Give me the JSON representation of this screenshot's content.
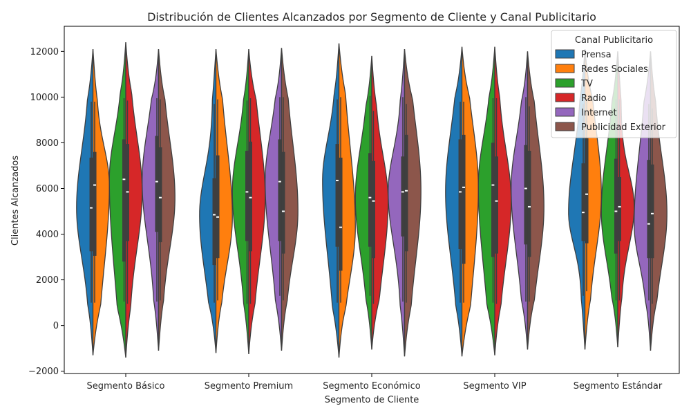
{
  "chart_data": {
    "type": "violin",
    "title": "Distribución de Clientes Alcanzados por Segmento de Cliente y Canal Publicitario",
    "xlabel": "Segmento de Cliente",
    "ylabel": "Clientes Alcanzados",
    "ylim": [
      -2100,
      13100
    ],
    "yticks": [
      -2000,
      0,
      2000,
      4000,
      6000,
      8000,
      10000,
      12000
    ],
    "ytick_labels": [
      "−2000",
      "0",
      "2000",
      "4000",
      "6000",
      "8000",
      "10000",
      "12000"
    ],
    "grid": false,
    "categories": [
      "Segmento Básico",
      "Segmento Premium",
      "Segmento Económico",
      "Segmento VIP",
      "Segmento Estándar"
    ],
    "legend": {
      "title": "Canal Publicitario",
      "position": "top-right"
    },
    "series": [
      {
        "name": "Prensa",
        "color": "#1f77b4",
        "stats": [
          {
            "min": 1000,
            "q1": 3250,
            "median": 5150,
            "q3": 7350,
            "max": 9800,
            "low": -1300,
            "high": 12100
          },
          {
            "min": 1000,
            "q1": 2650,
            "median": 4850,
            "q3": 6450,
            "max": 9700,
            "low": -1200,
            "high": 12100
          },
          {
            "min": 1000,
            "q1": 3450,
            "median": 6350,
            "q3": 7950,
            "max": 9900,
            "low": -1400,
            "high": 12350
          },
          {
            "min": 1000,
            "q1": 3350,
            "median": 5850,
            "q3": 8150,
            "max": 9800,
            "low": -1350,
            "high": 12200
          },
          {
            "min": 1300,
            "q1": 3700,
            "median": 4950,
            "q3": 7100,
            "max": 9700,
            "low": -1050,
            "high": 12100
          }
        ]
      },
      {
        "name": "Redes Sociales",
        "color": "#ff7f0e",
        "stats": [
          {
            "min": 1000,
            "q1": 3050,
            "median": 6150,
            "q3": 7600,
            "max": 9800,
            "low": -1300,
            "high": 12100
          },
          {
            "min": 1100,
            "q1": 2950,
            "median": 4750,
            "q3": 7450,
            "max": 9900,
            "low": -1200,
            "high": 12100
          },
          {
            "min": 1000,
            "q1": 2400,
            "median": 4300,
            "q3": 7350,
            "max": 10000,
            "low": -1400,
            "high": 12350
          },
          {
            "min": 1000,
            "q1": 2700,
            "median": 6050,
            "q3": 8350,
            "max": 9800,
            "low": -1350,
            "high": 12200
          },
          {
            "min": 1500,
            "q1": 3600,
            "median": 5750,
            "q3": 8200,
            "max": 9900,
            "low": -1050,
            "high": 12100
          }
        ]
      },
      {
        "name": "TV",
        "color": "#2ca02c",
        "stats": [
          {
            "min": 1050,
            "q1": 2800,
            "median": 6400,
            "q3": 8150,
            "max": 9950,
            "low": -1400,
            "high": 12400
          },
          {
            "min": 950,
            "q1": 3700,
            "median": 5850,
            "q3": 7650,
            "max": 9850,
            "low": -1250,
            "high": 12100
          },
          {
            "min": 1300,
            "q1": 3450,
            "median": 5600,
            "q3": 7550,
            "max": 10050,
            "low": -1050,
            "high": 11800
          },
          {
            "min": 1000,
            "q1": 3000,
            "median": 6150,
            "q3": 8000,
            "max": 9950,
            "low": -1300,
            "high": 12200
          },
          {
            "min": 1100,
            "q1": 3150,
            "median": 5000,
            "q3": 7300,
            "max": 9900,
            "low": -950,
            "high": 12000
          }
        ]
      },
      {
        "name": "Radio",
        "color": "#d62728",
        "stats": [
          {
            "min": 950,
            "q1": 3700,
            "median": 5850,
            "q3": 7950,
            "max": 9850,
            "low": -1400,
            "high": 12400
          },
          {
            "min": 950,
            "q1": 3250,
            "median": 5600,
            "q3": 8050,
            "max": 9950,
            "low": -1250,
            "high": 12100
          },
          {
            "min": 950,
            "q1": 2950,
            "median": 5450,
            "q3": 7200,
            "max": 9400,
            "low": -1050,
            "high": 11800
          },
          {
            "min": 950,
            "q1": 3150,
            "median": 5450,
            "q3": 7400,
            "max": 9950,
            "low": -1300,
            "high": 12200
          },
          {
            "min": 1100,
            "q1": 3700,
            "median": 5200,
            "q3": 6500,
            "max": 9900,
            "low": -950,
            "high": 12000
          }
        ]
      },
      {
        "name": "Internet",
        "color": "#9467bd",
        "stats": [
          {
            "min": 1050,
            "q1": 4100,
            "median": 6300,
            "q3": 8300,
            "max": 9950,
            "low": -1100,
            "high": 12100
          },
          {
            "min": 1300,
            "q1": 3700,
            "median": 6300,
            "q3": 8150,
            "max": 10000,
            "low": -1100,
            "high": 12150
          },
          {
            "min": 1050,
            "q1": 3900,
            "median": 5850,
            "q3": 7400,
            "max": 10000,
            "low": -1350,
            "high": 12100
          },
          {
            "min": 1050,
            "q1": 3550,
            "median": 6000,
            "q3": 7900,
            "max": 10000,
            "low": -1050,
            "high": 12000
          },
          {
            "min": 1100,
            "q1": 2950,
            "median": 4450,
            "q3": 7250,
            "max": 9700,
            "low": -1100,
            "high": 12000
          }
        ]
      },
      {
        "name": "Publicidad Exterior",
        "color": "#8c564b",
        "stats": [
          {
            "min": 1100,
            "q1": 3650,
            "median": 5600,
            "q3": 7800,
            "max": 9900,
            "low": -1100,
            "high": 12100
          },
          {
            "min": 1100,
            "q1": 3150,
            "median": 5000,
            "q3": 7600,
            "max": 10000,
            "low": -1100,
            "high": 12150
          },
          {
            "min": 1000,
            "q1": 3250,
            "median": 5900,
            "q3": 8350,
            "max": 9700,
            "low": -1350,
            "high": 12100
          },
          {
            "min": 1050,
            "q1": 3000,
            "median": 5200,
            "q3": 7650,
            "max": 9600,
            "low": -1050,
            "high": 12000
          },
          {
            "min": 950,
            "q1": 2950,
            "median": 4900,
            "q3": 7050,
            "max": 9500,
            "low": -1100,
            "high": 12000
          }
        ]
      }
    ]
  }
}
